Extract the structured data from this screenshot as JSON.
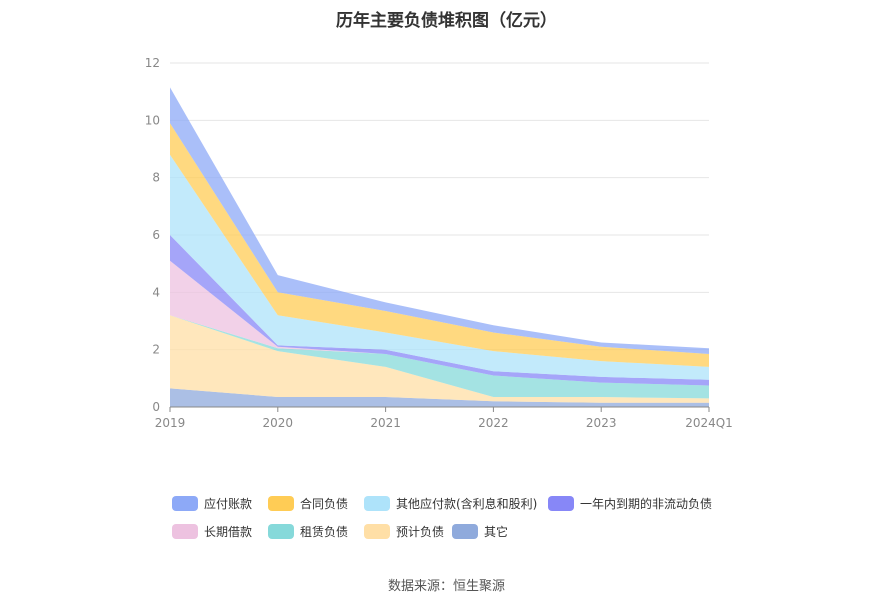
{
  "chart_data": {
    "type": "area",
    "stacked": true,
    "title": "历年主要负债堆积图（亿元）",
    "categories": [
      "2019",
      "2020",
      "2021",
      "2022",
      "2023",
      "2024Q1"
    ],
    "ylim": [
      0,
      12
    ],
    "yticks": [
      "0",
      "2",
      "4",
      "6",
      "8",
      "10",
      "12"
    ],
    "grid": true,
    "legend_position": "bottom",
    "series": [
      {
        "name": "其它",
        "color": "#8FAADC",
        "values": [
          0.65,
          0.35,
          0.35,
          0.2,
          0.15,
          0.15
        ]
      },
      {
        "name": "预计负债",
        "color": "#FFDFA6",
        "values": [
          2.55,
          1.6,
          1.05,
          0.15,
          0.2,
          0.15
        ]
      },
      {
        "name": "租赁负债",
        "color": "#86D9DA",
        "values": [
          0,
          0.1,
          0.45,
          0.75,
          0.5,
          0.45
        ]
      },
      {
        "name": "长期借款",
        "color": "#EDC2E0",
        "values": [
          1.9,
          0.05,
          0,
          0,
          0,
          0
        ]
      },
      {
        "name": "一年内到期的非流动负债",
        "color": "#8787F7",
        "values": [
          0.9,
          0.05,
          0.15,
          0.15,
          0.2,
          0.2
        ]
      },
      {
        "name": "其他应付款(含利息和股利)",
        "color": "#AEE3FA",
        "values": [
          2.8,
          1.05,
          0.6,
          0.7,
          0.55,
          0.45
        ]
      },
      {
        "name": "合同负债",
        "color": "#FFCC55",
        "values": [
          1.1,
          0.8,
          0.75,
          0.65,
          0.5,
          0.45
        ]
      },
      {
        "name": "应付账款",
        "color": "#8DA9F7",
        "values": [
          1.25,
          0.6,
          0.3,
          0.25,
          0.15,
          0.2
        ]
      }
    ]
  },
  "legend": [
    {
      "label": "应付账款",
      "color": "#8DA9F7"
    },
    {
      "label": "合同负债",
      "color": "#FFCC55"
    },
    {
      "label": "其他应付款(含利息和股利)",
      "color": "#AEE3FA"
    },
    {
      "label": "一年内到期的非流动负债",
      "color": "#8787F7"
    },
    {
      "label": "长期借款",
      "color": "#EDC2E0"
    },
    {
      "label": "租赁负债",
      "color": "#86D9DA"
    },
    {
      "label": "预计负债",
      "color": "#FFDFA6"
    },
    {
      "label": "其它",
      "color": "#8FAADC"
    }
  ],
  "source": "数据来源：恒生聚源"
}
